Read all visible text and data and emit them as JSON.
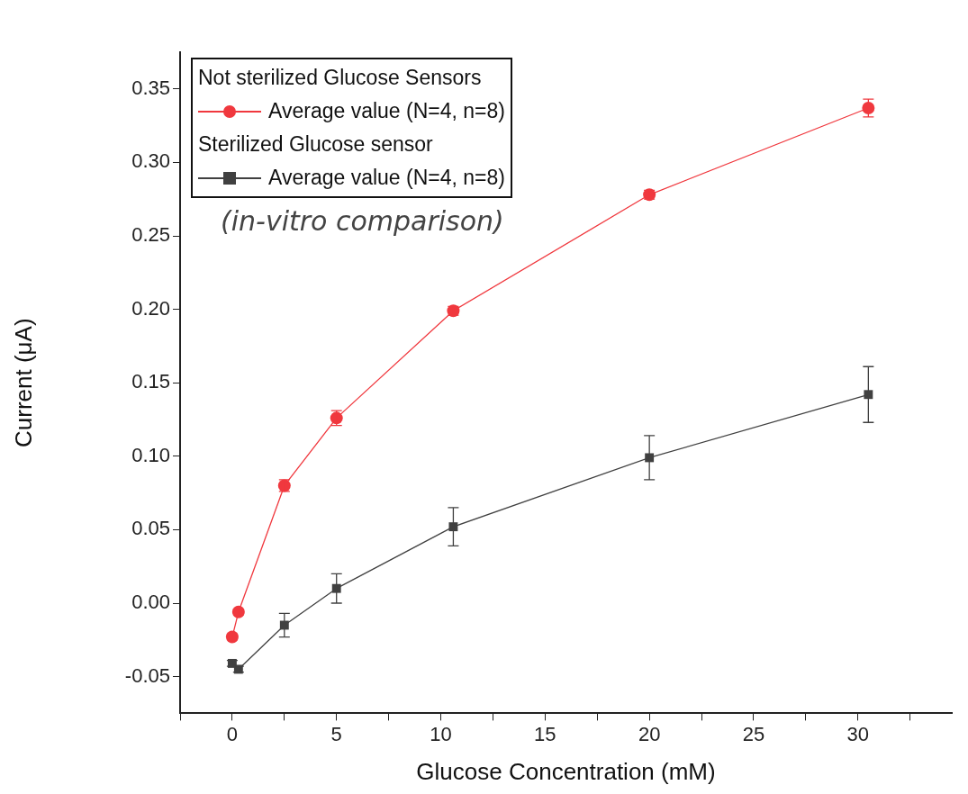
{
  "chart_data": {
    "type": "line",
    "xlabel": "Glucose Concentration (mM)",
    "ylabel": "Current (μA)",
    "annotations": [
      "Not sterilized Glucose Sensors",
      "Sterilized Glucose sensor",
      "(in-vitro comparison)"
    ],
    "xlim": [
      -2.5,
      34.5
    ],
    "xticks": [
      0,
      5,
      10,
      15,
      20,
      25,
      30
    ],
    "ylim": [
      -0.075,
      0.375
    ],
    "yticks": [
      {
        "value": -0.05,
        "label": "-0.05"
      },
      {
        "value": 0,
        "label": "0.00"
      },
      {
        "value": 0.05,
        "label": "0.05"
      },
      {
        "value": 0.1,
        "label": "0.10"
      },
      {
        "value": 0.15,
        "label": "0.15"
      },
      {
        "value": 0.2,
        "label": "0.20"
      },
      {
        "value": 0.25,
        "label": "0.25"
      },
      {
        "value": 0.3,
        "label": "0.30"
      },
      {
        "value": 0.35,
        "label": "0.35"
      }
    ],
    "grid": false,
    "legend": "top left",
    "series": [
      {
        "name": "Average value (N=4, n=8)",
        "color": "#f0383e",
        "marker": "circle",
        "x": [
          0,
          0.3,
          2.5,
          5,
          10.6,
          20,
          30.5
        ],
        "values": [
          -0.023,
          -0.006,
          0.08,
          0.126,
          0.199,
          0.278,
          0.337
        ],
        "errors": [
          0.002,
          0.002,
          0.004,
          0.005,
          0.003,
          0.003,
          0.006
        ]
      },
      {
        "name": "Average value (N=4, n=8)",
        "color": "#404040",
        "marker": "square",
        "x": [
          0,
          0.3,
          2.5,
          5,
          10.6,
          20,
          30.5
        ],
        "values": [
          -0.041,
          -0.045,
          -0.015,
          0.01,
          0.052,
          0.099,
          0.142
        ],
        "errors": [
          0.002,
          0.002,
          0.008,
          0.01,
          0.013,
          0.015,
          0.019
        ]
      }
    ]
  }
}
